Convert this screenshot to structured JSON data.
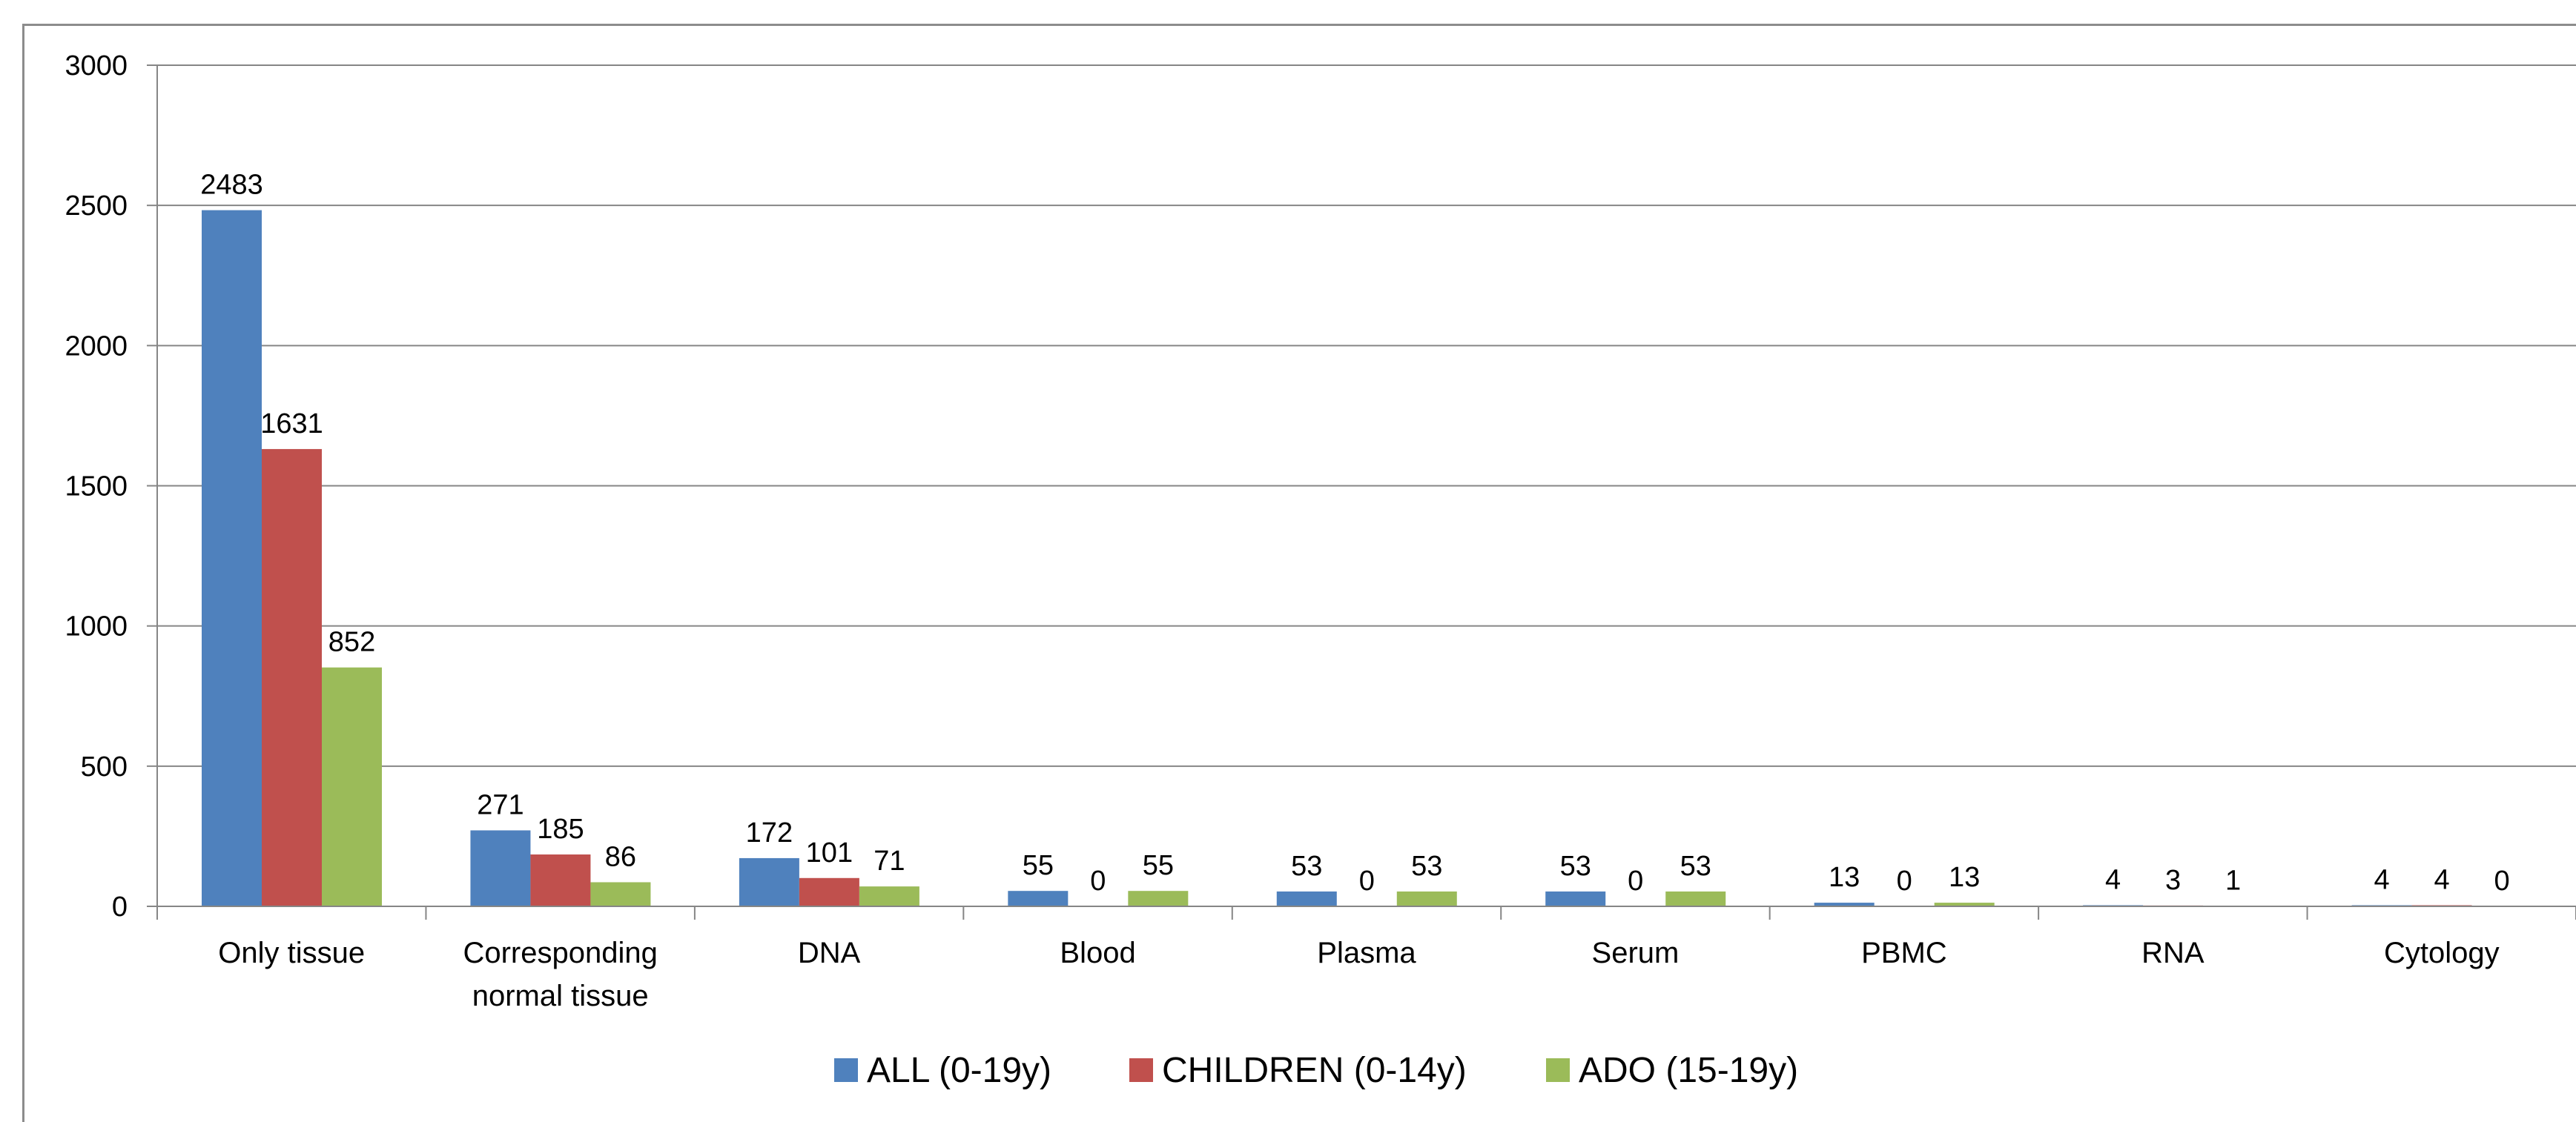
{
  "chart_data": {
    "type": "bar",
    "categories": [
      [
        "Only tissue"
      ],
      [
        "Corresponding",
        "normal tissue"
      ],
      [
        "DNA"
      ],
      [
        "Blood"
      ],
      [
        "Plasma"
      ],
      [
        "Serum"
      ],
      [
        "PBMC"
      ],
      [
        "RNA"
      ],
      [
        "Cytology"
      ]
    ],
    "series": [
      {
        "name": "ALL (0-19y)",
        "color": "#4f81bd",
        "values": [
          2483,
          271,
          172,
          55,
          53,
          53,
          13,
          4,
          4
        ]
      },
      {
        "name": "CHILDREN (0-14y)",
        "color": "#c0504d",
        "values": [
          1631,
          185,
          101,
          0,
          0,
          0,
          0,
          3,
          4
        ]
      },
      {
        "name": "ADO (15-19y)",
        "color": "#9bbb59",
        "values": [
          852,
          86,
          71,
          55,
          53,
          53,
          13,
          1,
          0
        ]
      }
    ],
    "yticks": [
      "0",
      "500",
      "1000",
      "1500",
      "2000",
      "2500",
      "3000"
    ],
    "ylim": [
      0,
      3000
    ],
    "grid": true,
    "legend_position": "bottom",
    "gridline_color": "#868686",
    "axis_color": "#868686"
  }
}
